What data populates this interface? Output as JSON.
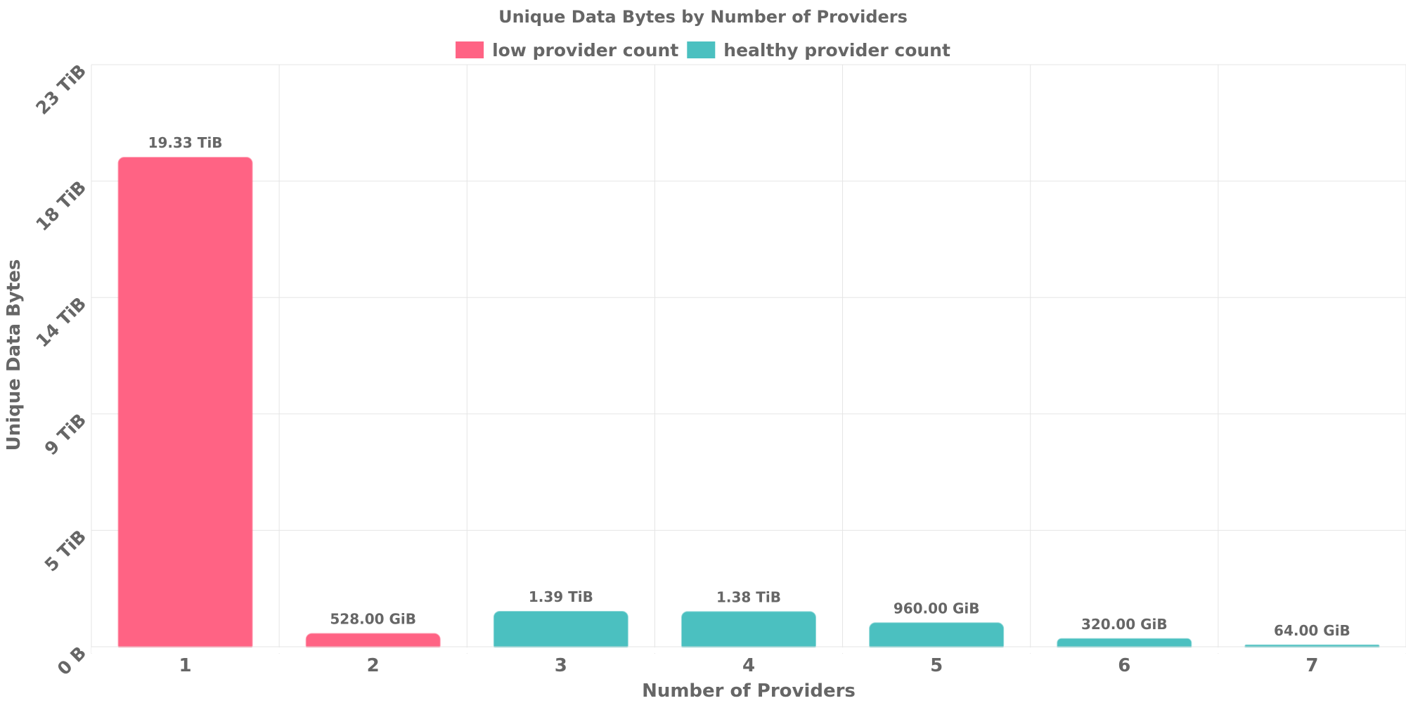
{
  "chart_data": {
    "type": "bar",
    "title": "Unique Data Bytes by Number of Providers",
    "xlabel": "Number of Providers",
    "ylabel": "Unique Data Bytes",
    "categories": [
      "1",
      "2",
      "3",
      "4",
      "5",
      "6",
      "7"
    ],
    "values_tib": [
      19.33,
      0.515625,
      1.39,
      1.38,
      0.9375,
      0.3125,
      0.0625
    ],
    "value_labels": [
      "19.33 TiB",
      "528.00 GiB",
      "1.39 TiB",
      "1.38 TiB",
      "960.00 GiB",
      "320.00 GiB",
      "64.00 GiB"
    ],
    "bar_series": [
      "low provider count",
      "low provider count",
      "healthy provider count",
      "healthy provider count",
      "healthy provider count",
      "healthy provider count",
      "healthy provider count"
    ],
    "legend": [
      {
        "name": "low provider count",
        "color": "#ff6384"
      },
      {
        "name": "healthy provider count",
        "color": "#4bc0c0"
      }
    ],
    "legend_position": "top",
    "yticks": [
      {
        "value": 0,
        "label": "0 B"
      },
      {
        "value": 4.6,
        "label": "5 TiB"
      },
      {
        "value": 9.2,
        "label": "9 TiB"
      },
      {
        "value": 13.8,
        "label": "14 TiB"
      },
      {
        "value": 18.4,
        "label": "18 TiB"
      },
      {
        "value": 23,
        "label": "23 TiB"
      }
    ],
    "ylim": [
      0,
      23
    ],
    "grid": true
  }
}
